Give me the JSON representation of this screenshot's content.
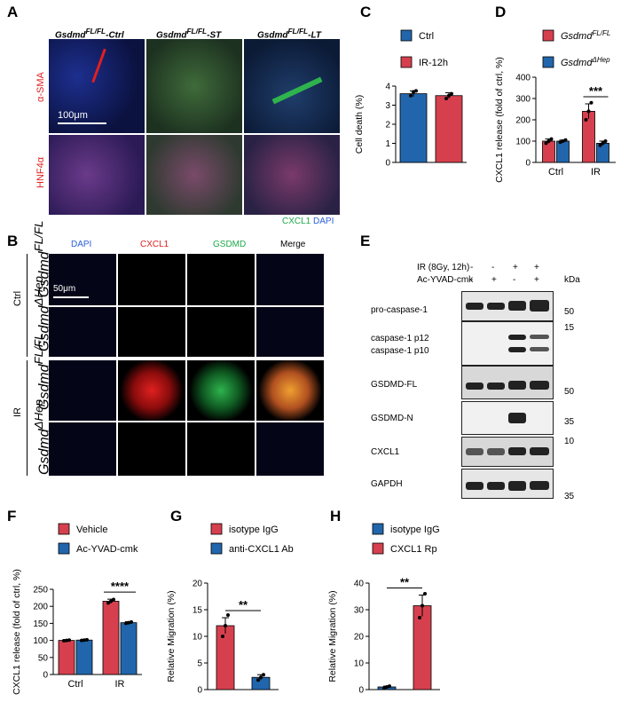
{
  "panel_labels": {
    "A": "A",
    "B": "B",
    "C": "C",
    "D": "D",
    "E": "E",
    "F": "F",
    "G": "G",
    "H": "H"
  },
  "panelA": {
    "columns": [
      {
        "base": "Gsdmd",
        "sup": "FL/FL",
        "suffix": "-Ctrl"
      },
      {
        "base": "Gsdmd",
        "sup": "FL/FL",
        "suffix": "-ST"
      },
      {
        "base": "Gsdmd",
        "sup": "FL/FL",
        "suffix": "-LT"
      }
    ],
    "rows": [
      "α-SMA",
      "HNF4α"
    ],
    "scale_bar": "100μm",
    "legend_green": "CXCL1",
    "legend_blue": "DAPI",
    "colors": {
      "red": "#e02020",
      "green": "#1fa94a",
      "blue": "#2b5fd9"
    }
  },
  "panelB": {
    "channels": [
      {
        "label": "DAPI",
        "color": "#2b5fd9"
      },
      {
        "label": "CXCL1",
        "color": "#e02020"
      },
      {
        "label": "GSDMD",
        "color": "#1fa94a"
      },
      {
        "label": "Merge",
        "color": "#000000"
      }
    ],
    "groups": [
      "Ctrl",
      "IR"
    ],
    "genotypes": [
      {
        "base": "Gsdmd",
        "sup": "FL/FL"
      },
      {
        "base": "Gsdmd",
        "sup": "ΔHep"
      },
      {
        "base": "Gsdmd",
        "sup": "FL/FL"
      },
      {
        "base": "Gsdmd",
        "sup": "ΔHep"
      }
    ],
    "scale_bar": "50μm"
  },
  "panelE": {
    "conditions": [
      {
        "label": "IR (8Gy, 12h)",
        "values": [
          "-",
          "-",
          "+",
          "+"
        ]
      },
      {
        "label": "Ac-YVAD-cmk",
        "values": [
          "-",
          "+",
          "-",
          "+"
        ]
      }
    ],
    "kda_label": "kDa",
    "blots": [
      {
        "label": "pro-caspase-1",
        "marker": "50"
      },
      {
        "label": "caspase-1 p12",
        "label2": "caspase-1 p10",
        "marker": "15"
      },
      {
        "label": "GSDMD-FL",
        "marker": "50"
      },
      {
        "label": "GSDMD-N",
        "marker": "35"
      },
      {
        "label": "CXCL1",
        "marker": "10"
      },
      {
        "label": "GAPDH",
        "marker": "35"
      }
    ]
  },
  "chart_data": [
    {
      "id": "C",
      "type": "bar",
      "legend": [
        {
          "name": "Ctrl",
          "color": "#2166ac"
        },
        {
          "name": "IR-12h",
          "color": "#d6404e"
        }
      ],
      "categories": [
        "Ctrl",
        "IR-12h"
      ],
      "values": [
        3.6,
        3.5
      ],
      "errors": [
        0.15,
        0.15
      ],
      "points": [
        [
          3.5,
          3.7,
          3.75
        ],
        [
          3.35,
          3.5,
          3.6
        ]
      ],
      "ylabel": "Cell death (%)",
      "ylim": [
        0,
        4
      ],
      "yticks": [
        "0",
        "1",
        "2",
        "3",
        "4"
      ]
    },
    {
      "id": "D",
      "type": "bar",
      "legend": [
        {
          "name": "Gsdmd",
          "sup": "FL/FL",
          "color": "#d6404e"
        },
        {
          "name": "Gsdmd",
          "sup": "ΔHep",
          "color": "#2166ac"
        }
      ],
      "categories": [
        "Ctrl",
        "IR"
      ],
      "series": [
        {
          "values": [
            100,
            240
          ],
          "errors": [
            10,
            35
          ],
          "points": [
            [
              90,
              100,
              110
            ],
            [
              200,
              240,
              280
            ]
          ]
        },
        {
          "values": [
            100,
            90
          ],
          "errors": [
            5,
            10
          ],
          "points": [
            [
              95,
              100,
              105
            ],
            [
              80,
              90,
              100
            ]
          ]
        }
      ],
      "ylabel": "CXCL1 release (fold of ctrl, %)",
      "ylim": [
        0,
        400
      ],
      "yticks": [
        "0",
        "100",
        "200",
        "300",
        "400"
      ],
      "significance": "***"
    },
    {
      "id": "F",
      "type": "bar",
      "legend": [
        {
          "name": "Vehicle",
          "color": "#d6404e"
        },
        {
          "name": "Ac-YVAD-cmk",
          "color": "#2166ac"
        }
      ],
      "categories": [
        "Ctrl",
        "IR"
      ],
      "series": [
        {
          "values": [
            100,
            215
          ],
          "errors": [
            2,
            6
          ],
          "points": [
            [
              99,
              100,
              101
            ],
            [
              210,
              215,
              220
            ]
          ]
        },
        {
          "values": [
            101,
            152
          ],
          "errors": [
            2,
            3
          ],
          "points": [
            [
              100,
              101,
              102
            ],
            [
              150,
              152,
              154
            ]
          ]
        }
      ],
      "ylabel": "CXCL1 release (fold of ctrl, %)",
      "ylim": [
        0,
        250
      ],
      "yticks": [
        "0",
        "50",
        "100",
        "150",
        "200",
        "250"
      ],
      "significance": "****"
    },
    {
      "id": "G",
      "type": "bar",
      "legend": [
        {
          "name": "isotype IgG",
          "color": "#d6404e"
        },
        {
          "name": "anti-CXCL1 Ab",
          "color": "#2166ac"
        }
      ],
      "categories": [
        "isotype IgG",
        "anti-CXCL1 Ab"
      ],
      "values": [
        12,
        2.3
      ],
      "errors": [
        1.5,
        0.5
      ],
      "points": [
        [
          10,
          12,
          14
        ],
        [
          1.8,
          2.3,
          2.8
        ]
      ],
      "ylabel": "Relative Migration (%)",
      "ylim": [
        0,
        20
      ],
      "yticks": [
        "0",
        "5",
        "10",
        "15",
        "20"
      ],
      "significance": "**"
    },
    {
      "id": "H",
      "type": "bar",
      "legend": [
        {
          "name": "isotype IgG",
          "color": "#2166ac"
        },
        {
          "name": "CXCL1 Rp",
          "color": "#d6404e"
        }
      ],
      "categories": [
        "isotype IgG",
        "CXCL1 Rp"
      ],
      "values": [
        1,
        31.5
      ],
      "errors": [
        0.3,
        4
      ],
      "points": [
        [
          0.6,
          1,
          1.3
        ],
        [
          27,
          31.5,
          36
        ]
      ],
      "ylabel": "Relative Migration (%)",
      "ylim": [
        0,
        40
      ],
      "yticks": [
        "0",
        "10",
        "20",
        "30",
        "40"
      ],
      "significance": "**"
    }
  ]
}
